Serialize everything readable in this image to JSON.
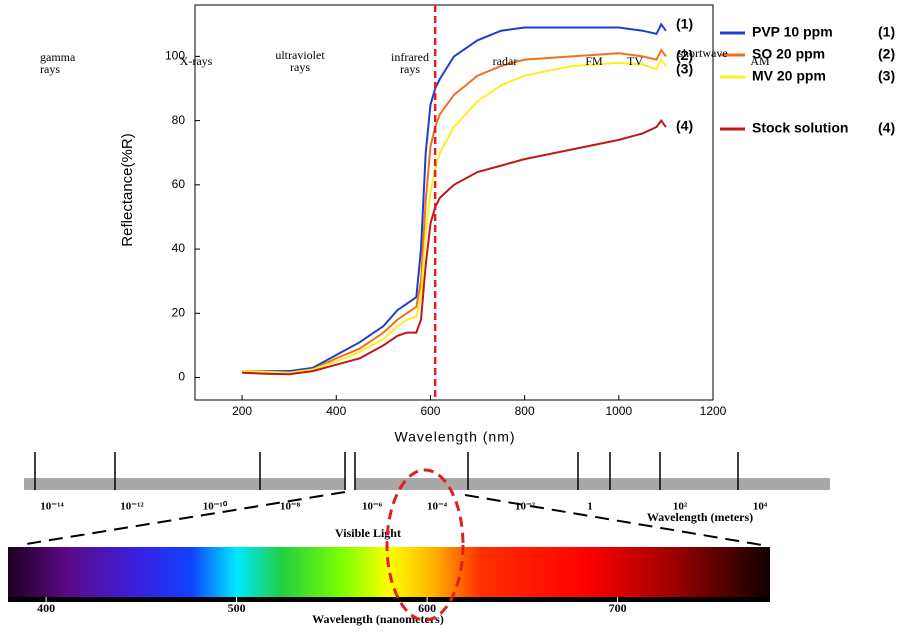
{
  "chart_data": {
    "type": "line",
    "xlabel": "Wavelength (nm)",
    "ylabel": "Reflectance(%R)",
    "x": [
      200,
      250,
      300,
      350,
      400,
      450,
      500,
      530,
      550,
      570,
      580,
      590,
      600,
      610,
      620,
      650,
      700,
      750,
      800,
      900,
      1000,
      1050,
      1080,
      1090,
      1100
    ],
    "series": [
      {
        "name": "PVP 10 ppm",
        "tag": "(1)",
        "color": "#1f3fc4",
        "values": [
          2,
          2,
          2,
          3,
          7,
          11,
          16,
          21,
          23,
          25,
          40,
          70,
          85,
          90,
          93,
          100,
          105,
          108,
          109,
          109,
          109,
          108,
          107,
          110,
          108
        ]
      },
      {
        "name": "SO 20 ppm",
        "tag": "(2)",
        "color": "#f07020",
        "values": [
          2,
          1.8,
          1.5,
          2.5,
          6,
          9,
          14,
          18,
          20,
          22,
          30,
          55,
          72,
          78,
          82,
          88,
          94,
          97,
          99,
          100,
          101,
          100,
          99,
          102,
          100
        ]
      },
      {
        "name": "MV 20 ppm",
        "tag": "(3)",
        "color": "#ffee22",
        "values": [
          2,
          1.8,
          1.5,
          2.5,
          5,
          8,
          12,
          16,
          18,
          19,
          25,
          45,
          58,
          65,
          70,
          78,
          86,
          91,
          94,
          97,
          98,
          97.5,
          96,
          99,
          97
        ]
      },
      {
        "name": "Stock solution",
        "tag": "(4)",
        "color": "#c01818",
        "values": [
          1.5,
          1.2,
          1,
          2,
          4,
          6,
          10,
          13,
          14,
          14,
          18,
          35,
          48,
          53,
          56,
          60,
          64,
          66,
          68,
          71,
          74,
          76,
          78,
          80,
          78
        ]
      }
    ],
    "xlim": [
      100,
      1200
    ],
    "ylim": [
      -7,
      116
    ],
    "xticks": [
      200,
      400,
      600,
      800,
      1000,
      1200
    ],
    "yticks": [
      0,
      20,
      40,
      60,
      80,
      100
    ],
    "vline": 610,
    "vline_color": "#e02020"
  },
  "spectrum": {
    "bands": [
      "gamma rays",
      "X-rays",
      "ultraviolet rays",
      "infrared rays",
      "radar",
      "FM",
      "TV",
      "shortwave",
      "AM"
    ],
    "scale": [
      "10⁻¹⁴",
      "10⁻¹²",
      "10⁻¹⁰",
      "10⁻⁸",
      "10⁻⁶",
      "10⁻⁴",
      "10⁻²",
      "1",
      "10²",
      "10⁴"
    ],
    "scale_title": "Wavelength (meters)",
    "visible_title": "Visible Light",
    "visible": {
      "xlim": [
        380,
        780
      ],
      "xticks": [
        400,
        500,
        600,
        700
      ],
      "xlabel": "Wavelength (nanometers)"
    }
  }
}
